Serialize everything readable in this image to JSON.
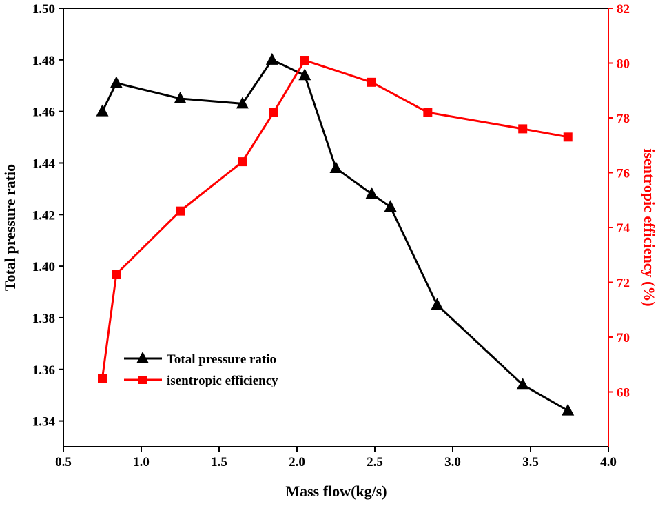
{
  "colors": {
    "series1": "#000000",
    "series2": "#ff0000",
    "axis_left": "#000000",
    "axis_right": "#ff0000"
  },
  "chart_data": {
    "type": "line",
    "xlabel": "Mass flow(kg/s)",
    "ylabel": "Total pressure ratio",
    "y2label": "isentropic efficiency (%)",
    "xlim": [
      0.5,
      4.0
    ],
    "ylim": [
      1.33,
      1.5
    ],
    "y2lim": [
      66,
      82
    ],
    "xticks": [
      "0.5",
      "1.0",
      "1.5",
      "2.0",
      "2.5",
      "3.0",
      "3.5",
      "4.0"
    ],
    "yticks": [
      "1.34",
      "1.36",
      "1.38",
      "1.40",
      "1.42",
      "1.44",
      "1.46",
      "1.48",
      "1.50"
    ],
    "y2ticks": [
      "68",
      "70",
      "72",
      "74",
      "76",
      "78",
      "80",
      "82"
    ],
    "legend_position": "lower-left",
    "series": [
      {
        "name": "Total pressure ratio",
        "axis": "left",
        "marker": "triangle",
        "x": [
          0.75,
          0.84,
          1.25,
          1.65,
          1.84,
          2.05,
          2.25,
          2.48,
          2.6,
          2.9,
          3.45,
          3.74
        ],
        "values": [
          1.46,
          1.471,
          1.465,
          1.463,
          1.48,
          1.474,
          1.438,
          1.428,
          1.423,
          1.385,
          1.354,
          1.344
        ]
      },
      {
        "name": "isentropic efficiency",
        "axis": "right",
        "marker": "square",
        "x": [
          0.75,
          0.84,
          1.25,
          1.65,
          1.85,
          2.05,
          2.48,
          2.84,
          3.45,
          3.74
        ],
        "values": [
          68.5,
          72.3,
          74.6,
          76.4,
          78.2,
          80.1,
          79.3,
          78.2,
          77.6,
          77.3
        ]
      }
    ]
  }
}
